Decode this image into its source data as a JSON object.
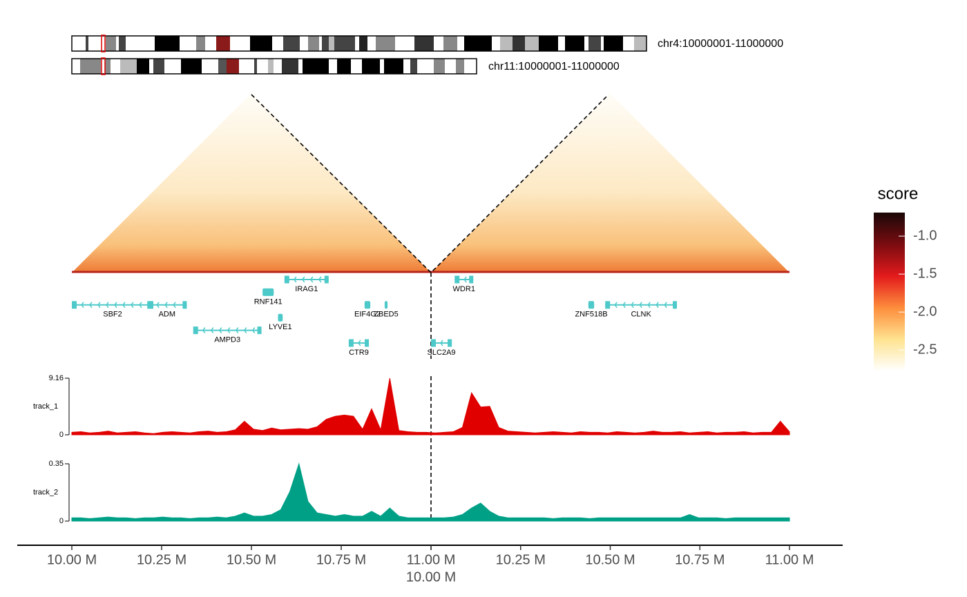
{
  "chart_data": {
    "type": "genome-browser",
    "regions": [
      {
        "label": "chr4:10000001-11000000",
        "xlim": [
          10.0,
          11.0
        ],
        "xticks": [
          {
            "value": 10.0,
            "label": "10.00 M"
          },
          {
            "value": 10.25,
            "label": "10.25 M"
          },
          {
            "value": 10.5,
            "label": "10.50 M"
          },
          {
            "value": 10.75,
            "label": "10.75 M"
          },
          {
            "value": 11.0,
            "label": "11.00 M"
          }
        ],
        "gene_rows": [
          [
            {
              "name": "IRAG1",
              "start": 10.592,
              "end": 10.715
            }
          ],
          [
            {
              "name": "RNF141",
              "start": 10.531,
              "end": 10.562
            }
          ],
          [
            {
              "name": "SBF2",
              "start": 10.0,
              "end": 10.227
            },
            {
              "name": "ADM",
              "start": 10.21,
              "end": 10.32
            },
            {
              "name": "EIF4G2",
              "start": 10.815,
              "end": 10.831
            },
            {
              "name": "ZBED5",
              "start": 10.871,
              "end": 10.879
            }
          ],
          [
            {
              "name": "LYVE1",
              "start": 10.574,
              "end": 10.587
            }
          ],
          [
            {
              "name": "AMPD3",
              "start": 10.338,
              "end": 10.528
            }
          ],
          [
            {
              "name": "CTR9",
              "start": 10.771,
              "end": 10.827
            }
          ]
        ]
      },
      {
        "label": "chr11:10000001-11000000",
        "xlim": [
          10.0,
          11.0
        ],
        "xticks": [
          {
            "value": 10.0,
            "label": "10.00 M"
          },
          {
            "value": 10.25,
            "label": "10.25 M"
          },
          {
            "value": 10.5,
            "label": "10.50 M"
          },
          {
            "value": 10.75,
            "label": "10.75 M"
          },
          {
            "value": 11.0,
            "label": "11.00 M"
          }
        ],
        "gene_rows": [
          [
            {
              "name": "WDR1",
              "start": 10.066,
              "end": 10.118
            }
          ],
          [],
          [
            {
              "name": "ZNF518B",
              "start": 10.439,
              "end": 10.455
            },
            {
              "name": "CLNK",
              "start": 10.486,
              "end": 10.686
            }
          ],
          [],
          [],
          [
            {
              "name": "SLC2A9",
              "start": 10.0,
              "end": 10.058
            }
          ]
        ]
      }
    ],
    "colorbar": {
      "title": "score",
      "zlim": [
        -2.78,
        -0.69
      ],
      "ticks": [
        {
          "value": -1.0,
          "label": "-1.0"
        },
        -1.5,
        {
          "value": -2.0,
          "label": "-2.0"
        },
        -2.5
      ],
      "colors": [
        "#ffffff",
        "#fee391",
        "#fd8d3c",
        "#e31a1c",
        "#7a0c10",
        "#1a0808"
      ]
    },
    "tracks": [
      {
        "name": "track_1",
        "color": "#e00000",
        "ylim": [
          0,
          9.16
        ],
        "yticks": [
          0,
          9.16
        ],
        "values": [
          0.4,
          0.5,
          0.3,
          0.4,
          0.6,
          0.3,
          0.4,
          0.5,
          0.3,
          0.2,
          0.4,
          0.5,
          0.4,
          0.3,
          0.5,
          0.6,
          0.4,
          0.5,
          0.8,
          2.2,
          0.9,
          0.7,
          1.1,
          0.8,
          0.9,
          1.0,
          0.9,
          1.3,
          2.5,
          3.0,
          3.2,
          3.0,
          0.9,
          4.2,
          0.8,
          9.16,
          0.7,
          0.5,
          0.4,
          0.4,
          0.3,
          0.4,
          0.5,
          1.2,
          6.8,
          4.5,
          4.6,
          1.2,
          0.6,
          0.5,
          0.4,
          0.3,
          0.4,
          0.5,
          0.4,
          0.3,
          0.5,
          0.4,
          0.4,
          0.3,
          0.5,
          0.4,
          0.3,
          0.4,
          0.6,
          0.4,
          0.4,
          0.5,
          0.3,
          0.4,
          0.5,
          0.3,
          0.4,
          0.4,
          0.5,
          0.3,
          0.4,
          0.4,
          2.2,
          0.5
        ]
      },
      {
        "name": "track_2",
        "color": "#00a087",
        "ylim": [
          0,
          0.35
        ],
        "yticks": [
          0,
          0.35
        ],
        "values": [
          0.02,
          0.02,
          0.015,
          0.02,
          0.025,
          0.02,
          0.02,
          0.015,
          0.02,
          0.02,
          0.025,
          0.02,
          0.02,
          0.015,
          0.02,
          0.02,
          0.025,
          0.02,
          0.03,
          0.05,
          0.03,
          0.03,
          0.04,
          0.07,
          0.18,
          0.35,
          0.12,
          0.05,
          0.04,
          0.03,
          0.04,
          0.03,
          0.03,
          0.06,
          0.03,
          0.08,
          0.03,
          0.02,
          0.02,
          0.02,
          0.02,
          0.02,
          0.025,
          0.04,
          0.08,
          0.11,
          0.06,
          0.03,
          0.02,
          0.02,
          0.02,
          0.02,
          0.02,
          0.015,
          0.02,
          0.02,
          0.02,
          0.015,
          0.02,
          0.02,
          0.02,
          0.02,
          0.02,
          0.02,
          0.02,
          0.02,
          0.02,
          0.02,
          0.04,
          0.02,
          0.02,
          0.02,
          0.015,
          0.02,
          0.02,
          0.02,
          0.02,
          0.02,
          0.02,
          0.02
        ]
      }
    ]
  }
}
